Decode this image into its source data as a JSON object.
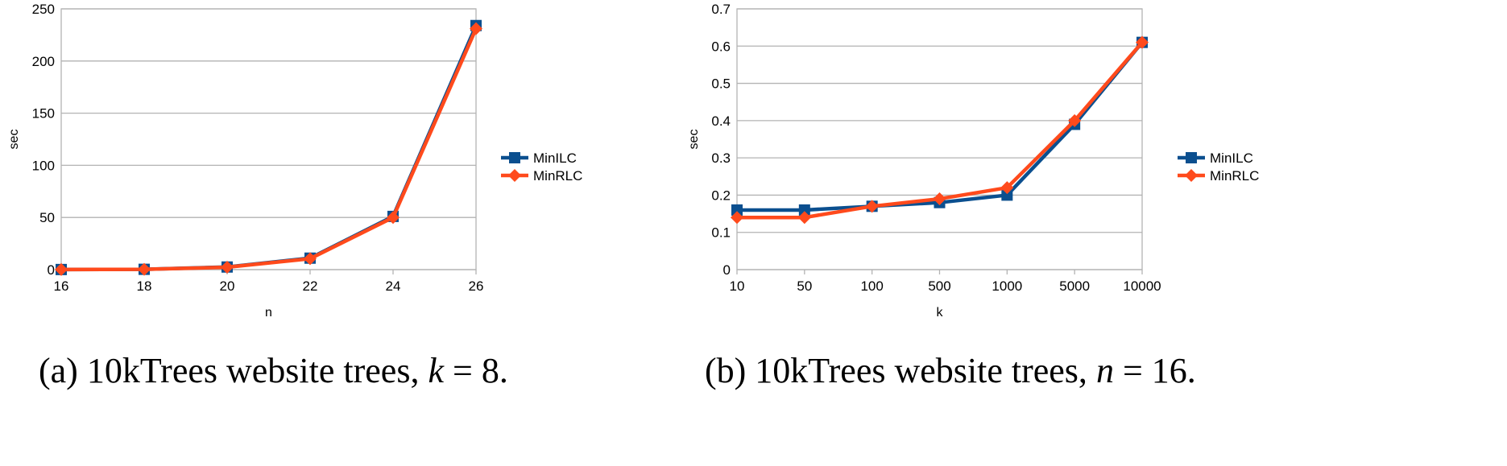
{
  "chart_data": [
    {
      "type": "line",
      "title": "",
      "xlabel": "n",
      "ylabel": "sec",
      "categories": [
        "16",
        "18",
        "20",
        "22",
        "24",
        "26"
      ],
      "ylim": [
        0,
        250
      ],
      "yticks": [
        "0",
        "50",
        "100",
        "150",
        "200",
        "250"
      ],
      "grid": true,
      "legend_position": "right",
      "series": [
        {
          "name": "MinILC",
          "color": "#0b4f8f",
          "marker": "square",
          "values": [
            0.1,
            0.3,
            2.5,
            11,
            51,
            234
          ]
        },
        {
          "name": "MinRLC",
          "color": "#ff4a1c",
          "marker": "diamond",
          "values": [
            0.1,
            0.3,
            2.3,
            10.5,
            50,
            231
          ]
        }
      ],
      "caption": {
        "prefix": "(a) 10kTrees website trees, ",
        "var": "k",
        "suffix": " = 8."
      }
    },
    {
      "type": "line",
      "title": "",
      "xlabel": "k",
      "ylabel": "sec",
      "categories": [
        "10",
        "50",
        "100",
        "500",
        "1000",
        "5000",
        "10000"
      ],
      "ylim": [
        0,
        0.7
      ],
      "yticks": [
        "0",
        "0.1",
        "0.2",
        "0.3",
        "0.4",
        "0.5",
        "0.6",
        "0.7"
      ],
      "grid": true,
      "legend_position": "right",
      "series": [
        {
          "name": "MinILC",
          "color": "#0b4f8f",
          "marker": "square",
          "values": [
            0.16,
            0.16,
            0.17,
            0.18,
            0.2,
            0.39,
            0.61
          ]
        },
        {
          "name": "MinRLC",
          "color": "#ff4a1c",
          "marker": "diamond",
          "values": [
            0.14,
            0.14,
            0.17,
            0.19,
            0.22,
            0.4,
            0.61
          ]
        }
      ],
      "caption": {
        "prefix": "(b) 10kTrees website trees, ",
        "var": "n",
        "suffix": " = 16."
      }
    }
  ]
}
